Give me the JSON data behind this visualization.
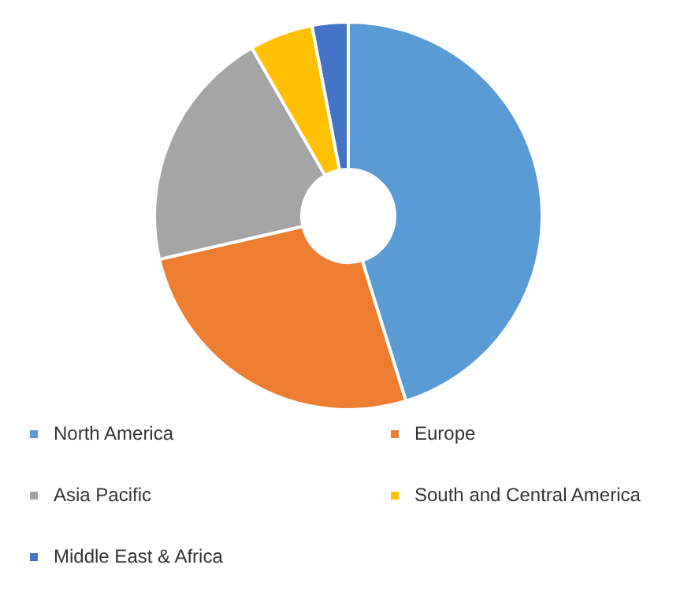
{
  "chart_data": {
    "type": "donut",
    "categories": [
      "North America",
      "Europe",
      "Asia Pacific",
      "South and Central America",
      "Middle East & Africa"
    ],
    "values": [
      45.2,
      26.2,
      20.3,
      5.3,
      3.0
    ],
    "colors": [
      "#5b9bd5",
      "#ed7d31",
      "#a5a5a5",
      "#ffc000",
      "#4472c4"
    ],
    "legend": "bottom"
  }
}
